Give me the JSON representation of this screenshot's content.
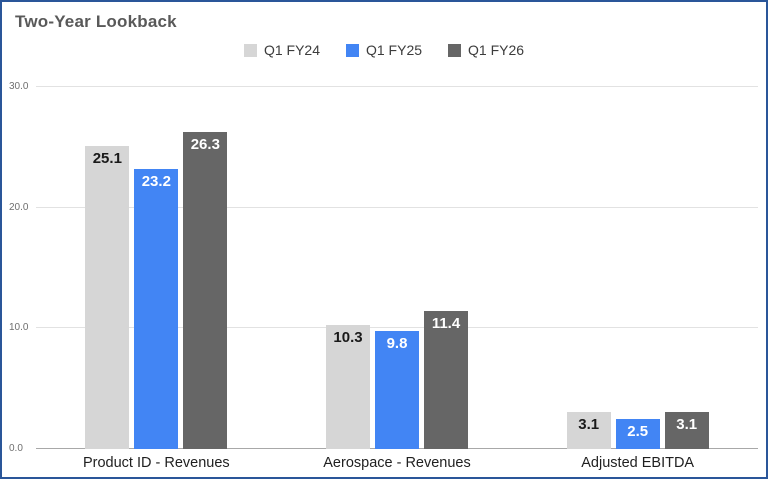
{
  "frame": {
    "border_color": "#2a5699",
    "background": "#ffffff"
  },
  "chart_data": {
    "type": "bar",
    "title": "Two-Year Lookback",
    "categories": [
      "Product ID - Revenues",
      "Aerospace - Revenues",
      "Adjusted EBITDA"
    ],
    "series": [
      {
        "name": "Q1 FY24",
        "color": "#d6d6d6",
        "label_color": "#1a1a1a",
        "values": [
          25.1,
          10.3,
          3.1
        ]
      },
      {
        "name": "Q1 FY25",
        "color": "#4285f4",
        "label_color": "#ffffff",
        "values": [
          23.2,
          9.8,
          2.5
        ]
      },
      {
        "name": "Q1 FY26",
        "color": "#666666",
        "label_color": "#ffffff",
        "values": [
          26.3,
          11.4,
          3.1
        ]
      }
    ],
    "ylim": [
      0,
      30
    ],
    "yticks": [
      0,
      10,
      20,
      30
    ],
    "ytick_labels": [
      "0.0",
      "10.0",
      "20.0",
      "30.0"
    ],
    "grid": true,
    "legend_position": "top",
    "data_labels": true
  }
}
